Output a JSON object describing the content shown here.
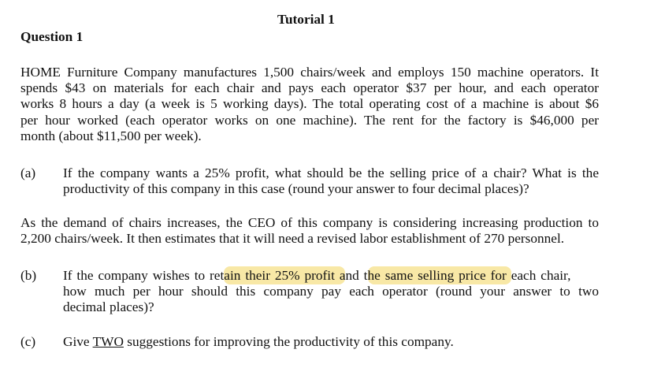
{
  "title": "Tutorial 1",
  "question": "Question 1",
  "intro": [
    "HOME Furniture Company manufactures 1,500 chairs/week and employs 150 machine operators. It",
    "spends $43 on materials for each chair and pays each operator $37 per hour, and each operator",
    "works 8 hours a day (a week is 5 working days). The total operating cost of a machine is about $6",
    "per hour worked (each operator works on one machine). The rent for the factory is $46,000 per",
    "month (about $11,500 per week)."
  ],
  "a": {
    "label": "(a)",
    "lines": [
      "If the company wants a 25% profit, what should be the selling price of a chair? What is the",
      "productivity of this company in this case (round your answer to four decimal places)?"
    ]
  },
  "middle": [
    "As the demand of chairs increases, the CEO of this company is considering increasing production to",
    "2,200 chairs/week. It then estimates that it will need a revised labor establishment of 270 personnel."
  ],
  "b": {
    "label": "(b)",
    "line1": [
      "If the company wishes to ret",
      "ain their 25% profit a",
      "nd t",
      "he same selling price for ",
      "each chair,"
    ],
    "lines": [
      "how much per hour should this company pay each operator (round your answer to two",
      "decimal places)?"
    ]
  },
  "c": {
    "label": "(c)",
    "pre": "Give ",
    "under": "TWO",
    "post": " suggestions for improving the productivity of this company."
  },
  "highlight_color": "#f8e8a6"
}
